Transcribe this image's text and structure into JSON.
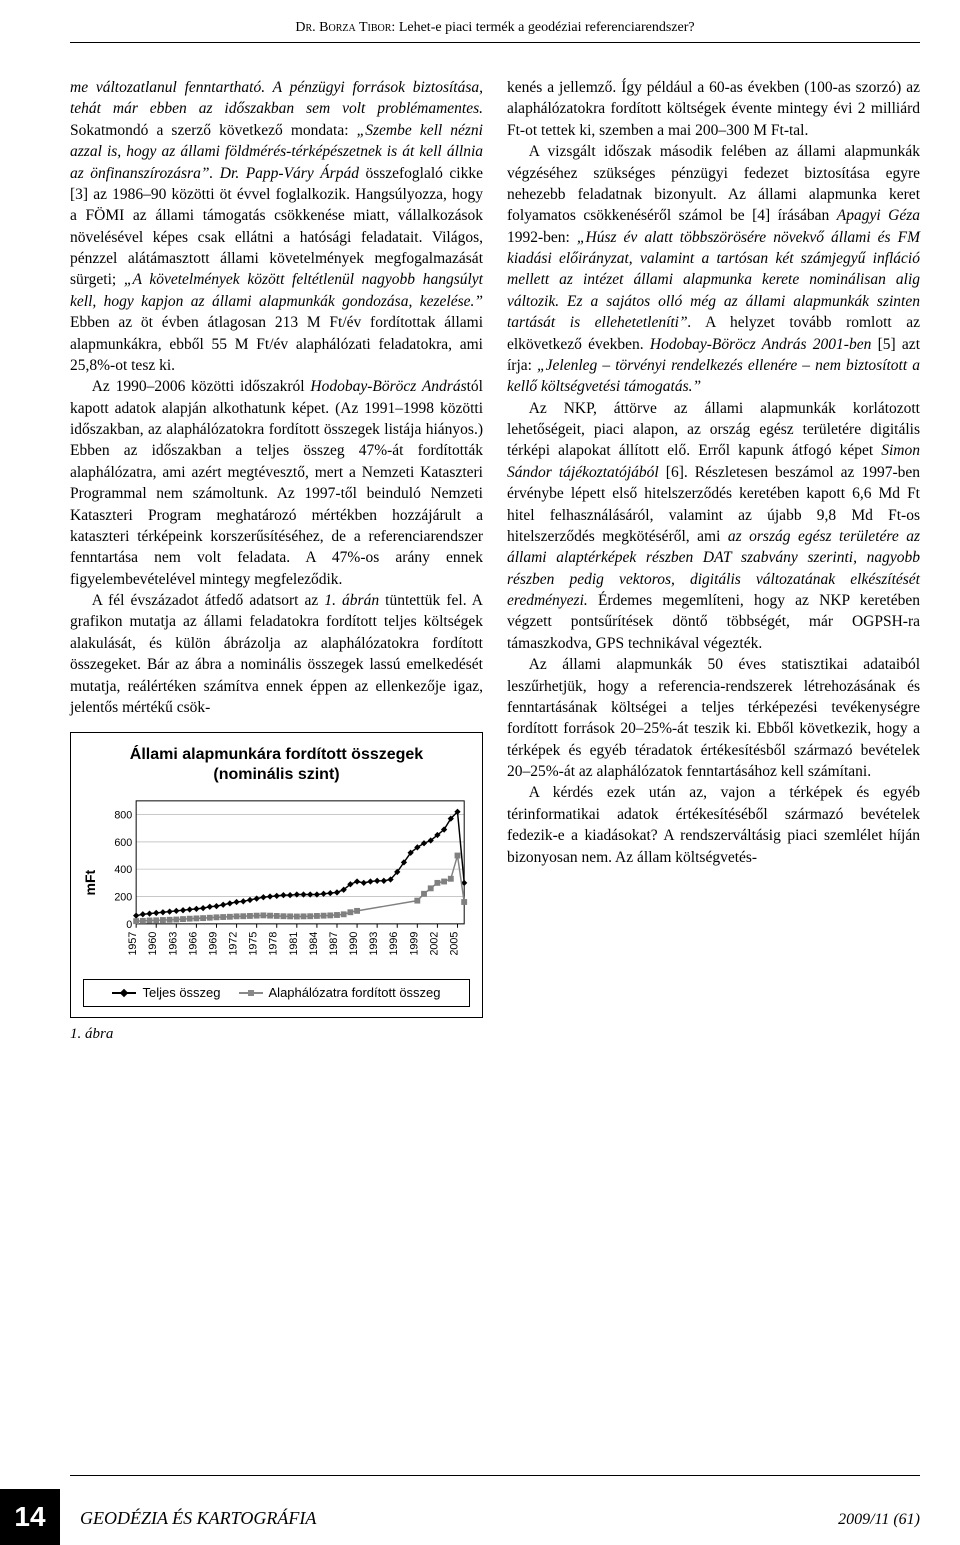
{
  "header": {
    "author": "Dr. Borza Tibor:",
    "title": "Lehet-e piaci termék a geodéziai referenciarendszer?"
  },
  "body": {
    "col1": {
      "p1a": "me változatlanul fenntartható. A pénzügyi források biztosítása, tehát már ebben az időszakban sem volt problémamentes.",
      "p1b_open": " Sokatmondó a szerző következő mondata: ",
      "p1b_quote": "„Szembe kell nézni azzal is, hogy az állami földmérés-térképészetnek is át kell állnia az önfinanszírozásra”. Dr. Papp-Váry Árpád",
      "p1b_mid": " összefoglaló cikke [3] az 1986–90 közötti öt évvel foglalkozik. Hangsúlyozza, hogy a FÖMI az állami támogatás csökkenése miatt, vállalkozások növelésével képes csak ellátni a hatósági feladatait. Világos, pénzzel alátámasztott állami követelmények megfogalmazását sürgeti; ",
      "p1b_quote2": "„A követelmények között feltétlenül nagyobb hangsúlyt kell, hogy kapjon az állami alapmunkák gondozása, kezelése.”",
      "p1b_end": " Ebben az öt évben átlagosan 213 M Ft/év fordítottak állami alapmunkákra, ebből 55 M Ft/év alaphálózati feladatokra, ami 25,8%-ot tesz ki.",
      "p2a": "Az 1990–2006 közötti időszakról ",
      "p2_name": "Hodobay-Böröcz András",
      "p2b": "tól kapott adatok alapján alkothatunk képet. (Az 1991–1998 közötti időszakban, az alaphálózatokra fordított összegek listája hiányos.) Ebben az időszakban a teljes összeg 47%-át fordították alaphálózatra, ami azért megtévesztő, mert a Nemzeti Kataszteri Programmal nem számoltunk. Az 1997-től beinduló Nemzeti Kataszteri Program meghatározó mértékben hozzájárult a kataszteri térképeink korszerűsítéséhez, de a referenciarendszer fenntartása nem volt feladata. A 47%-os arány ennek figyelembevételével mintegy megfeleződik.",
      "p3a": "A fél évszázadot átfedő adatsort az ",
      "p3_fig": "1. ábrán",
      "p3b": " tüntettük fel. A grafikon mutatja az állami feladatokra fordított teljes költségek alakulását, és külön ábrázolja az alaphálózatokra fordított összegeket. Bár az ábra a nominális összegek lassú emelkedését mutatja, reálértéken számítva ennek éppen az ellenkezője igaz, jelentős mértékű csök-"
    },
    "col2": {
      "p1": "kenés a jellemző. Így például a 60-as években (100-as szorzó) az alaphálózatokra fordított költségek évente mintegy évi 2 milliárd Ft-ot tettek ki, szemben a mai 200–300 M Ft-tal.",
      "p2a": "A vizsgált időszak második felében az állami alapmunkák végzéséhez szükséges pénzügyi fedezet biztosítása egyre nehezebb feladatnak bizonyult. Az állami alapmunka keret folyamatos csökkenéséről számol be [4] írásában ",
      "p2_name1": "Apagyi Géza",
      "p2b": " 1992-ben: ",
      "p2_quote1": "„Húsz év alatt többszörösére növekvő állami és FM kiadási előirányzat, valamint a tartósan két számjegyű infláció mellett az intézet állami alapmunka kerete nominálisan alig változik. Ez a sajátos olló még az állami alapmunkák szinten tartását is ellehetetleníti”.",
      "p2c": " A helyzet tovább romlott az elkövetkező években. ",
      "p2_name2": "Hodobay-Böröcz András 2001-ben",
      "p2d": " [5] azt írja: ",
      "p2_quote2": "„Jelenleg – törvényi rendelkezés ellenére – nem biztosított a kellő költségvetési támogatás.”",
      "p3a": "Az NKP, áttörve az állami alapmunkák korlátozott lehetőségeit, piaci alapon, az ország egész területére digitális térképi alapokat állított elő. Erről kapunk átfogó képet ",
      "p3_name": "Simon Sándor tájékoztatójából",
      "p3b": " [6]. Részletesen beszámol az 1997-ben érvénybe lépett első hitelszerződés keretében kapott 6,6 Md Ft hitel felhasználásáról, valamint az újabb 9,8 Md Ft-os hitelszerződés megkötéséről, ami ",
      "p3_ital": "az ország egész területére az állami alaptérképek részben DAT szabvány szerinti, nagyobb részben pedig vektoros, digitális változatának elkészítését eredményezi.",
      "p3c": " Érdemes megemlíteni, hogy az NKP keretében végzett pontsűrítések döntő többségét, már OGPSH-ra támaszkodva, GPS technikával végezték.",
      "p4": "Az állami alapmunkák 50 éves statisztikai adataiból leszűrhetjük, hogy a referencia-rendszerek létrehozásának és fenntartásának költségei a teljes térképezési tevékenységre fordított források 20–25%-át teszik ki. Ebből következik, hogy a térképek és egyéb téradatok értékesítésből származó bevételek 20–25%-át az alaphálózatok fenntartásához kell számítani.",
      "p5": "A kérdés ezek után az, vajon a térképek és egyéb térinformatikai adatok értékesítéséből származó bevételek fedezik-e a kiadásokat? A rendszerváltásig piaci szemlélet híján bizonyosan nem. Az állam költségvetés-"
    }
  },
  "figure": {
    "title_line1": "Állami alapmunkára fordított összegek",
    "title_line2": "(nominális szint)",
    "y_label": "mFt",
    "y_ticks": [
      0,
      200,
      400,
      600,
      800
    ],
    "x_ticks": [
      1957,
      1960,
      1963,
      1966,
      1969,
      1972,
      1975,
      1978,
      1981,
      1984,
      1987,
      1990,
      1993,
      1996,
      1999,
      2002,
      2005
    ],
    "caption": "1. ábra",
    "legend": {
      "series1": "Teljes összeg",
      "series2": "Alaphálózatra fordított összeg"
    },
    "chart": {
      "type": "line",
      "xlim": [
        1957,
        2006
      ],
      "ylim": [
        0,
        900
      ],
      "background_color": "#ffffff",
      "grid_color": "#c8c8c8",
      "axis_color": "#000000",
      "series": [
        {
          "name": "Teljes összeg",
          "color": "#000000",
          "marker": "diamond",
          "marker_size": 5,
          "line_width": 1.5,
          "years": [
            1957,
            1958,
            1959,
            1960,
            1961,
            1962,
            1963,
            1964,
            1965,
            1966,
            1967,
            1968,
            1969,
            1970,
            1971,
            1972,
            1973,
            1974,
            1975,
            1976,
            1977,
            1978,
            1979,
            1980,
            1981,
            1982,
            1983,
            1984,
            1985,
            1986,
            1987,
            1988,
            1989,
            1990,
            1991,
            1992,
            1993,
            1994,
            1995,
            1996,
            1997,
            1998,
            1999,
            2000,
            2001,
            2002,
            2003,
            2004,
            2005,
            2006
          ],
          "values": [
            60,
            70,
            75,
            80,
            85,
            90,
            95,
            100,
            105,
            110,
            115,
            125,
            130,
            140,
            150,
            160,
            165,
            175,
            185,
            195,
            200,
            205,
            210,
            210,
            215,
            215,
            215,
            215,
            220,
            225,
            230,
            250,
            290,
            310,
            300,
            310,
            315,
            315,
            325,
            380,
            450,
            520,
            560,
            590,
            610,
            650,
            690,
            770,
            820,
            300
          ]
        },
        {
          "name": "Alaphálózatra fordított összeg",
          "color": "#808080",
          "marker": "square",
          "marker_size": 5,
          "line_width": 1.5,
          "years": [
            1957,
            1958,
            1959,
            1960,
            1961,
            1962,
            1963,
            1964,
            1965,
            1966,
            1967,
            1968,
            1969,
            1970,
            1971,
            1972,
            1973,
            1974,
            1975,
            1976,
            1977,
            1978,
            1979,
            1980,
            1981,
            1982,
            1983,
            1984,
            1985,
            1986,
            1987,
            1988,
            1989,
            1990,
            1999,
            2000,
            2001,
            2002,
            2003,
            2004,
            2005,
            2006
          ],
          "values": [
            20,
            22,
            25,
            26,
            28,
            30,
            32,
            35,
            38,
            40,
            42,
            45,
            48,
            50,
            52,
            55,
            56,
            58,
            60,
            62,
            60,
            58,
            56,
            55,
            54,
            55,
            56,
            58,
            60,
            62,
            65,
            70,
            85,
            95,
            170,
            220,
            260,
            300,
            310,
            330,
            500,
            160
          ]
        }
      ]
    }
  },
  "footer": {
    "page": "14",
    "journal": "GEODÉZIA ÉS KARTOGRÁFIA",
    "issue": "2009/11 (61)"
  }
}
